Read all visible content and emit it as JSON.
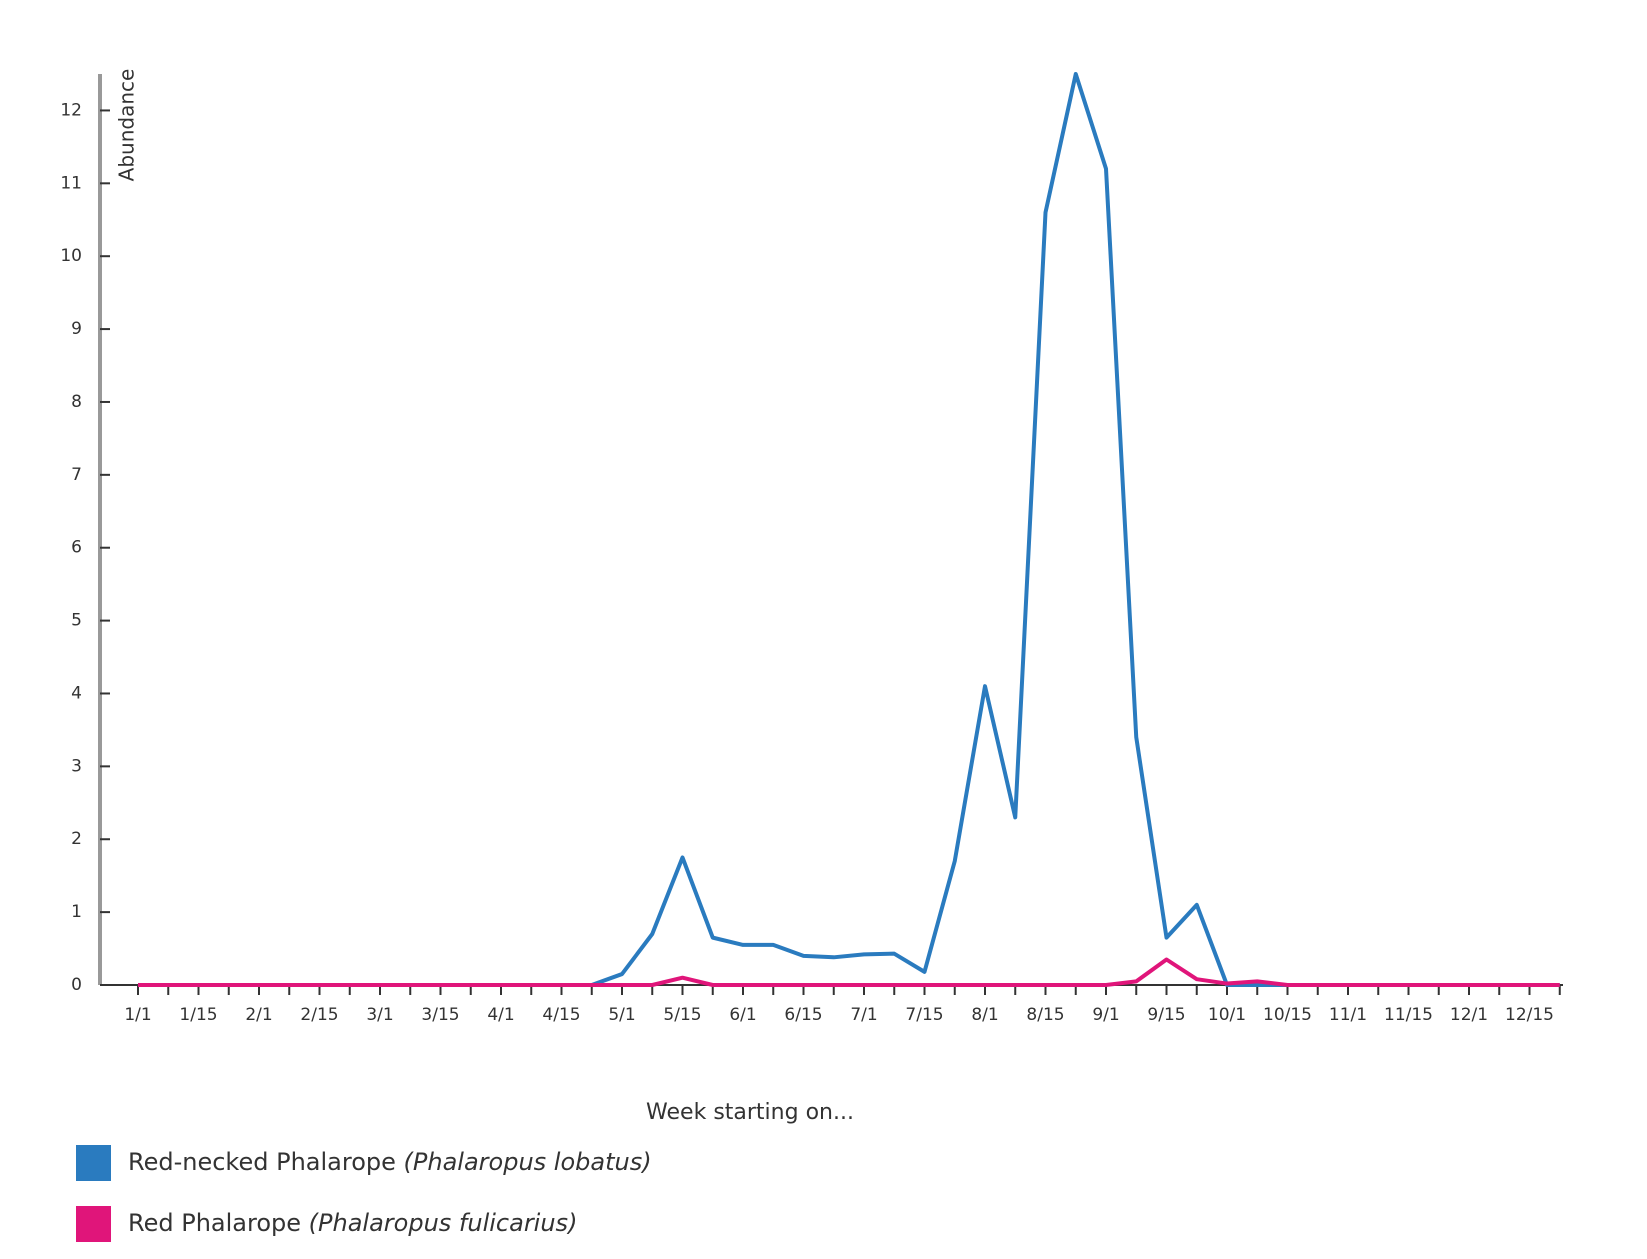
{
  "chart_data": {
    "type": "line",
    "y_label": "Abundance",
    "x_label": "Week starting on...",
    "categories": [
      "1/1",
      null,
      "1/15",
      null,
      "2/1",
      null,
      "2/15",
      null,
      "3/1",
      null,
      "3/15",
      null,
      "4/1",
      null,
      "4/15",
      null,
      "5/1",
      null,
      "5/15",
      null,
      "6/1",
      null,
      "6/15",
      null,
      "7/1",
      null,
      "7/15",
      null,
      "8/1",
      null,
      "8/15",
      null,
      "9/1",
      null,
      "9/15",
      null,
      "10/1",
      null,
      "10/15",
      null,
      "11/1",
      null,
      "11/15",
      null,
      "12/1",
      null,
      "12/15",
      null
    ],
    "series": [
      {
        "name": "Red-necked Phalarope",
        "scientific_name": "(Phalaropus lobatus)",
        "color": "#2a7bbf",
        "values": [
          0,
          0,
          0,
          0,
          0,
          0,
          0,
          0,
          0,
          0,
          0,
          0,
          0,
          0,
          0,
          0,
          0.15,
          0.7,
          1.75,
          0.65,
          0.55,
          0.55,
          0.4,
          0.38,
          0.42,
          0.43,
          0.18,
          1.7,
          4.1,
          2.3,
          10.6,
          12.5,
          11.2,
          3.4,
          0.65,
          1.1,
          0,
          0,
          0,
          0,
          0,
          0,
          0,
          0,
          0,
          0,
          0,
          0
        ]
      },
      {
        "name": "Red Phalarope",
        "scientific_name": "(Phalaropus fulicarius)",
        "color": "#e0157a",
        "values": [
          0,
          0,
          0,
          0,
          0,
          0,
          0,
          0,
          0,
          0,
          0,
          0,
          0,
          0,
          0,
          0,
          0,
          0,
          0.1,
          0,
          0,
          0,
          0,
          0,
          0,
          0,
          0,
          0,
          0,
          0,
          0,
          0,
          0,
          0.05,
          0.35,
          0.08,
          0.02,
          0.05,
          0,
          0,
          0,
          0,
          0,
          0,
          0,
          0,
          0,
          0
        ]
      }
    ],
    "ylim": [
      0,
      12.5
    ],
    "yticks": [
      0,
      1,
      2,
      3,
      4,
      5,
      6,
      7,
      8,
      9,
      10,
      11,
      12
    ]
  }
}
